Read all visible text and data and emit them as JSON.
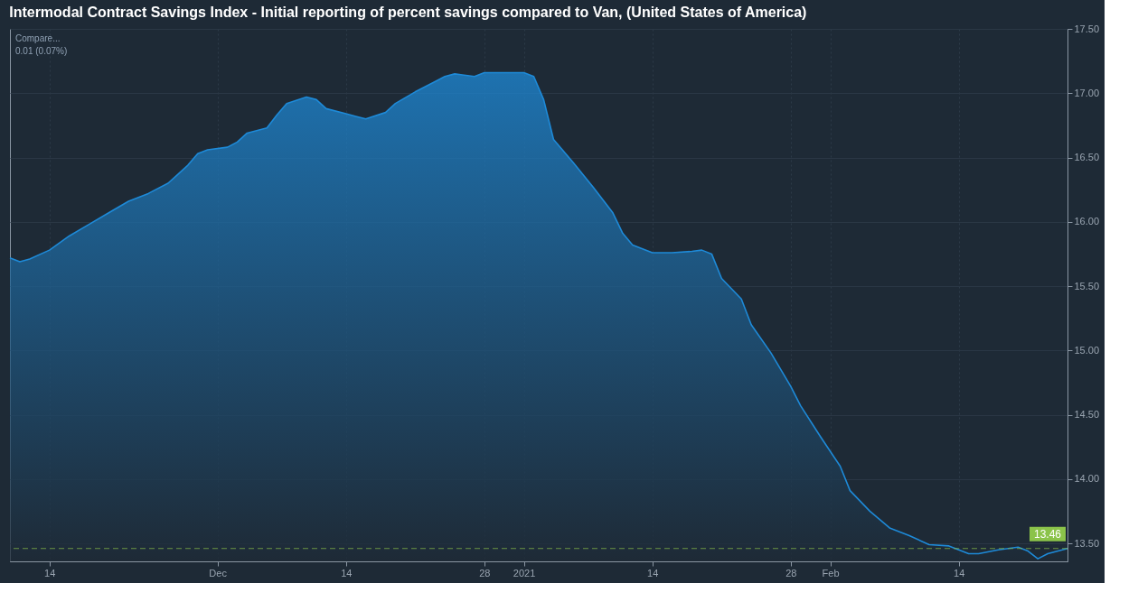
{
  "chart_data": {
    "type": "area",
    "title": "Intermodal Contract Savings Index - Initial reporting of percent savings compared to Van, (United States of America)",
    "annotations": [
      "Compare...",
      "0.01 (0.07%)"
    ],
    "x": [
      "2020-11-10",
      "2020-11-11",
      "2020-11-12",
      "2020-11-14",
      "2020-11-16",
      "2020-11-18",
      "2020-11-20",
      "2020-11-22",
      "2020-11-24",
      "2020-11-26",
      "2020-11-27",
      "2020-11-28",
      "2020-11-29",
      "2020-11-30",
      "2020-12-02",
      "2020-12-03",
      "2020-12-04",
      "2020-12-06",
      "2020-12-07",
      "2020-12-08",
      "2020-12-10",
      "2020-12-11",
      "2020-12-12",
      "2020-12-14",
      "2020-12-15",
      "2020-12-16",
      "2020-12-18",
      "2020-12-19",
      "2020-12-21",
      "2020-12-23",
      "2020-12-24",
      "2020-12-25",
      "2020-12-27",
      "2020-12-28",
      "2020-12-30",
      "2020-12-31",
      "2021-01-01",
      "2021-01-02",
      "2021-01-03",
      "2021-01-04",
      "2021-01-06",
      "2021-01-08",
      "2021-01-10",
      "2021-01-11",
      "2021-01-12",
      "2021-01-14",
      "2021-01-16",
      "2021-01-18",
      "2021-01-19",
      "2021-01-20",
      "2021-01-21",
      "2021-01-23",
      "2021-01-24",
      "2021-01-26",
      "2021-01-28",
      "2021-01-29",
      "2021-01-31",
      "2021-02-02",
      "2021-02-03",
      "2021-02-05",
      "2021-02-07",
      "2021-02-09",
      "2021-02-11",
      "2021-02-13",
      "2021-02-14",
      "2021-02-15",
      "2021-02-16",
      "2021-02-18",
      "2021-02-20",
      "2021-02-21",
      "2021-02-22",
      "2021-02-23",
      "2021-02-25"
    ],
    "series": [
      {
        "color": "#1e8ad8",
        "values": [
          15.72,
          15.69,
          15.71,
          15.78,
          15.89,
          15.98,
          16.07,
          16.16,
          16.22,
          16.3,
          16.37,
          16.44,
          16.53,
          16.56,
          16.58,
          16.62,
          16.69,
          16.73,
          16.83,
          16.92,
          16.97,
          16.95,
          16.88,
          16.84,
          16.82,
          16.8,
          16.85,
          16.92,
          17.01,
          17.09,
          17.13,
          17.15,
          17.13,
          17.16,
          17.16,
          17.16,
          17.16,
          17.13,
          16.95,
          16.64,
          16.46,
          16.27,
          16.07,
          15.91,
          15.82,
          15.76,
          15.76,
          15.77,
          15.78,
          15.75,
          15.56,
          15.4,
          15.2,
          14.98,
          14.72,
          14.57,
          14.33,
          14.1,
          13.91,
          13.75,
          13.62,
          13.56,
          13.49,
          13.48,
          13.45,
          13.42,
          13.42,
          13.45,
          13.47,
          13.44,
          13.38,
          13.42,
          13.46
        ]
      }
    ],
    "xlim": [
      "2020-11-10",
      "2021-02-25"
    ],
    "xticks": [
      {
        "value": "2020-11-14",
        "label": "14"
      },
      {
        "value": "2020-12-01",
        "label": "Dec"
      },
      {
        "value": "2020-12-14",
        "label": "14"
      },
      {
        "value": "2020-12-28",
        "label": "28"
      },
      {
        "value": "2021-01-01",
        "label": "2021"
      },
      {
        "value": "2021-01-14",
        "label": "14"
      },
      {
        "value": "2021-01-28",
        "label": "28"
      },
      {
        "value": "2021-02-01",
        "label": "Feb"
      },
      {
        "value": "2021-02-14",
        "label": "14"
      }
    ],
    "ylim": [
      13.36,
      17.5
    ],
    "yticks": [
      {
        "value": 13.5,
        "label": "13.50"
      },
      {
        "value": 14,
        "label": "14.00"
      },
      {
        "value": 14.5,
        "label": "14.50"
      },
      {
        "value": 15,
        "label": "15.00"
      },
      {
        "value": 15.5,
        "label": "15.50"
      },
      {
        "value": 16,
        "label": "16.00"
      },
      {
        "value": 16.5,
        "label": "16.50"
      },
      {
        "value": 17,
        "label": "17.00"
      },
      {
        "value": 17.5,
        "label": "17.50"
      }
    ],
    "ref_lines": [
      {
        "axis": "y",
        "value": 13.46,
        "label": "13.46",
        "color": "#8bc34a",
        "line_style": "dashed"
      }
    ],
    "grid": true,
    "marker": "none",
    "line_style": "solid"
  }
}
